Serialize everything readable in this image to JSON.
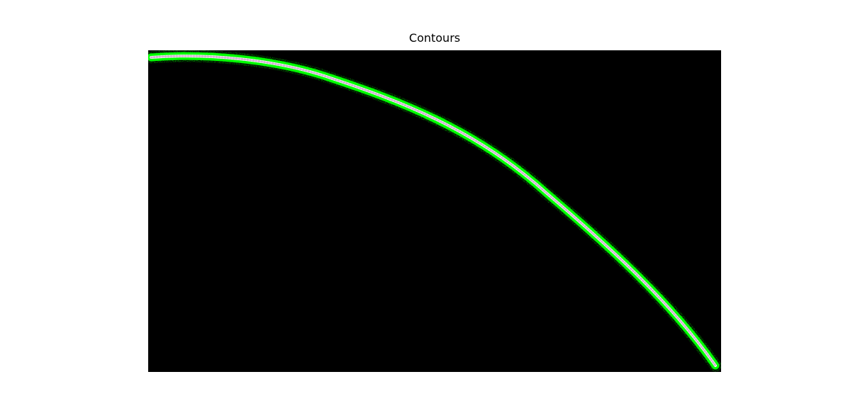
{
  "figure": {
    "title": "Contours"
  },
  "image": {
    "background_color": "#000000",
    "contour_color": "#00ff00",
    "skeleton_color": "#ffffff",
    "description_hidden": true
  }
}
